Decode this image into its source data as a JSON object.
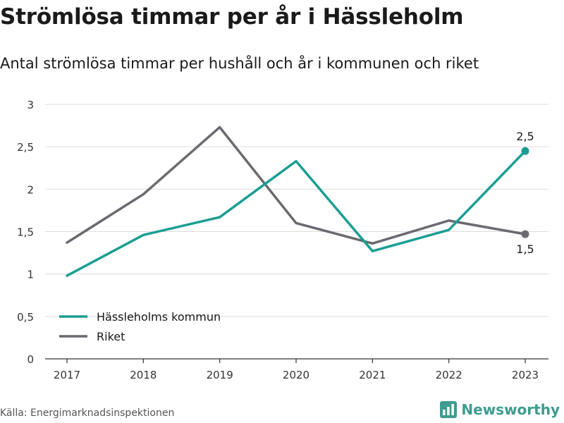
{
  "title": "Strömlösa timmar per år i Hässleholm",
  "subtitle": "Antal strömlösa timmar per hushåll och år i kommunen och riket",
  "source": "Källa: Energimarknadsinspektionen",
  "brand": {
    "name": "Newsworthy",
    "icon": "newsworthy-logo-icon",
    "color": "#3d9c8f"
  },
  "chart_data": {
    "type": "line",
    "x": [
      "2017",
      "2018",
      "2019",
      "2020",
      "2021",
      "2022",
      "2023"
    ],
    "ylim": [
      0,
      3
    ],
    "yticks": [
      0,
      0.5,
      1,
      1.5,
      2,
      2.5,
      3
    ],
    "ytick_labels": [
      "0",
      "0,5",
      "1",
      "1,5",
      "2",
      "2,5",
      "3"
    ],
    "grid": true,
    "legend_position": "bottom-left",
    "series": [
      {
        "name": "Hässleholms kommun",
        "color": "#1a9e93",
        "values": [
          0.98,
          1.46,
          1.67,
          2.33,
          1.27,
          1.52,
          2.45
        ],
        "end_label": "2,5"
      },
      {
        "name": "Riket",
        "color": "#6b6a70",
        "values": [
          1.37,
          1.94,
          2.73,
          1.6,
          1.36,
          1.63,
          1.47
        ],
        "end_label": "1,5"
      }
    ]
  }
}
